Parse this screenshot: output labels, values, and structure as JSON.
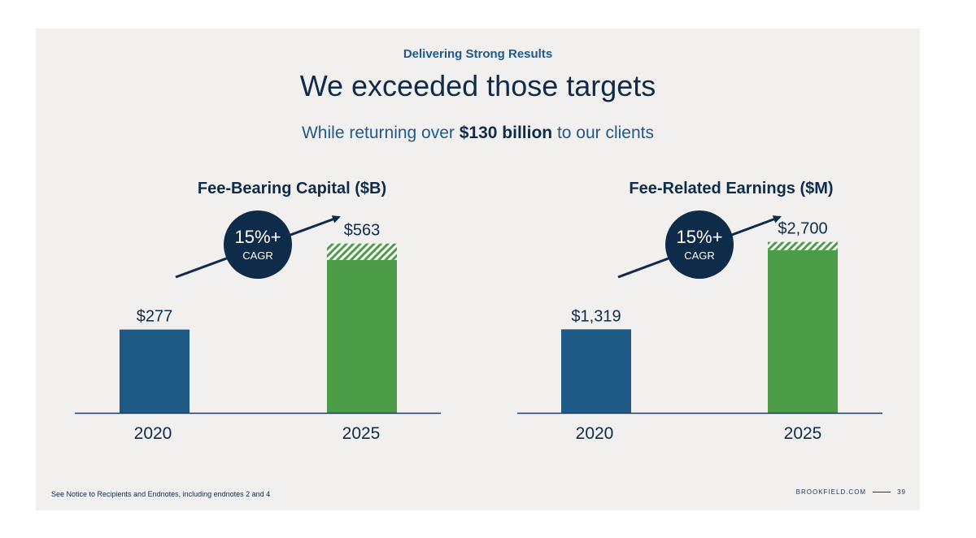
{
  "header": {
    "eyebrow": "Delivering Strong Results",
    "title": "We exceeded those targets",
    "subtitle_pre": "While returning over ",
    "subtitle_bold": "$130 billion",
    "subtitle_post": " to our clients"
  },
  "chart_data": [
    {
      "type": "bar",
      "title": "Fee-Bearing Capital ($B)",
      "categories": [
        "2020",
        "2025"
      ],
      "values": [
        277,
        563
      ],
      "value_labels": [
        "$277",
        "$563"
      ],
      "bar_colors": [
        "#1f5a86",
        "#4c9c47"
      ],
      "hatched_top_on_last_bar": true,
      "badge": {
        "big": "15%+",
        "small": "CAGR"
      },
      "ylim": [
        0,
        600
      ]
    },
    {
      "type": "bar",
      "title": "Fee-Related Earnings ($M)",
      "categories": [
        "2020",
        "2025"
      ],
      "values": [
        1319,
        2700
      ],
      "value_labels": [
        "$1,319",
        "$2,700"
      ],
      "bar_colors": [
        "#1f5a86",
        "#4c9c47"
      ],
      "hatched_top_on_last_bar": true,
      "badge": {
        "big": "15%+",
        "small": "CAGR"
      },
      "ylim": [
        0,
        2850
      ]
    }
  ],
  "footer": {
    "note": "See Notice to Recipients and Endnotes, including endnotes 2 and 4",
    "brand": "BROOKFIELD.COM",
    "page": "39"
  },
  "colors": {
    "navy": "#0f2b4a",
    "accent_blue": "#1e5a8c",
    "bar_blue": "#1f5a86",
    "bar_green": "#4c9c47",
    "background": "#f2f0ef"
  }
}
